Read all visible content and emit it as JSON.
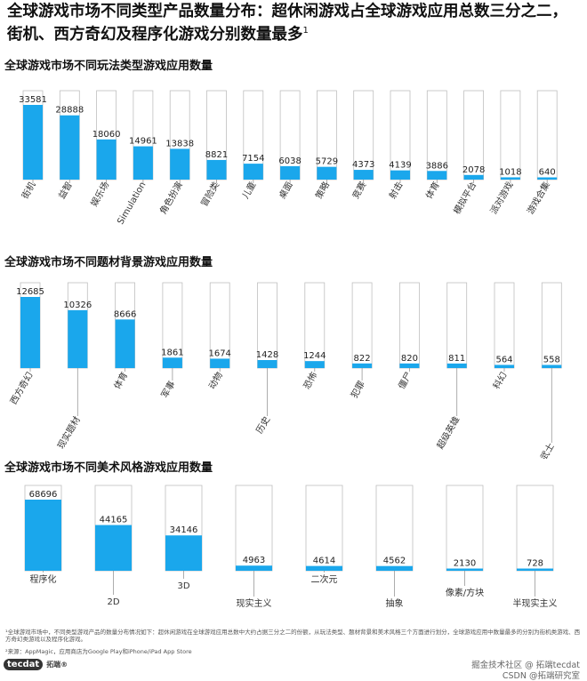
{
  "headline": "全球游戏市场不同类型产品数量分布：超休闲游戏占全球游戏应用总数三分之二，街机、西方奇幻及程序化游戏分别数量最多",
  "headline_sup": "1",
  "colors": {
    "bar": "#1aa7ec",
    "outline": "#bfbfbf",
    "leader": "#999999"
  },
  "chart_data": [
    {
      "type": "bar",
      "title": "全球游戏市场不同玩法类型游戏应用数量",
      "categories": [
        "街机",
        "益智",
        "娱乐场",
        "Simulation",
        "角色扮演",
        "冒险类",
        "儿童",
        "桌面",
        "策略",
        "竞赛",
        "射击",
        "体育",
        "模拟平台",
        "派对游戏",
        "游戏合集"
      ],
      "values": [
        33581,
        28888,
        18060,
        14961,
        13838,
        8821,
        7154,
        6038,
        5729,
        4373,
        4139,
        3886,
        2078,
        1018,
        640
      ]
    },
    {
      "type": "bar",
      "title": "全球游戏市场不同题材背景游戏应用数量",
      "categories": [
        "西方奇幻",
        "现实题材",
        "体育",
        "军事",
        "动物",
        "历史",
        "恐怖",
        "犯罪",
        "僵尸",
        "超级英雄",
        "科幻",
        "武士"
      ],
      "values": [
        12685,
        10326,
        8666,
        1861,
        1674,
        1428,
        1244,
        822,
        820,
        811,
        564,
        558
      ]
    },
    {
      "type": "bar",
      "title": "全球游戏市场不同美术风格游戏应用数量",
      "categories": [
        "程序化",
        "2D",
        "3D",
        "现实主义",
        "二次元",
        "抽象",
        "像素/方块",
        "半现实主义"
      ],
      "values": [
        68696,
        44165,
        34146,
        4963,
        4614,
        4562,
        2130,
        728
      ]
    }
  ],
  "footnotes": [
    "¹全球游戏市场中，不同类型游戏产品的数量分布情况如下：超休闲游戏在全球游戏应用总数中大约占据三分之二的份额，从玩法类型、题材背景和美术风格三个方面进行划分，全球游戏应用中数量最多的分别为街机类游戏、西方奇幻类游戏以及程序化游戏。",
    "²来源：AppMagic，应用商店为Google Play和iPhone/iPad App Store"
  ],
  "brand": {
    "logo": "tecdat",
    "name": "拓端®"
  },
  "watermark": [
    "掘金技术社区 @ 拓端tecdat",
    "CSDN @拓端研究室"
  ]
}
